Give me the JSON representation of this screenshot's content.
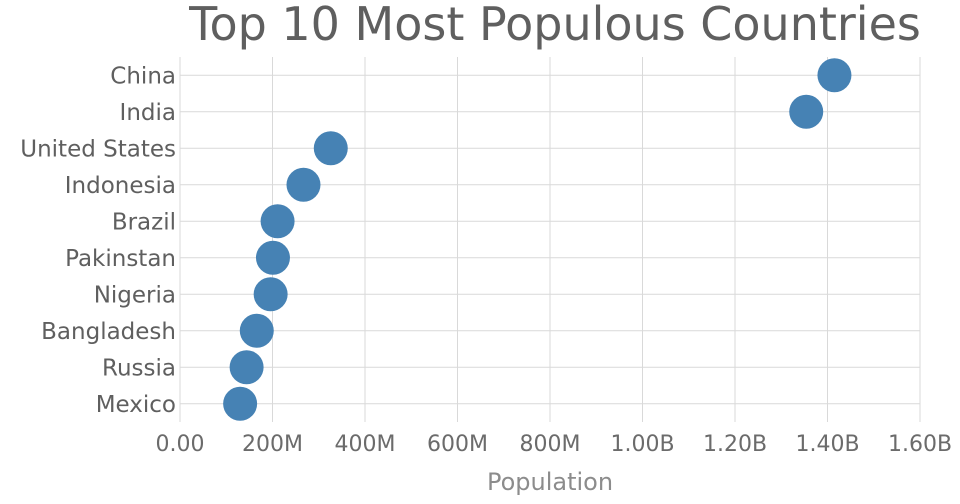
{
  "chart_data": {
    "type": "scatter",
    "title": "Top 10 Most Populous Countries",
    "xlabel": "Population",
    "ylabel": "",
    "xlim": [
      0,
      1600000000
    ],
    "x_ticks": [
      0,
      200000000,
      400000000,
      600000000,
      800000000,
      1000000000,
      1200000000,
      1400000000,
      1600000000
    ],
    "x_tick_labels": [
      "0.00",
      "200M",
      "400M",
      "600M",
      "800M",
      "1.00B",
      "1.20B",
      "1.40B",
      "1.60B"
    ],
    "categories": [
      "China",
      "India",
      "United States",
      "Indonesia",
      "Brazil",
      "Pakinstan",
      "Nigeria",
      "Bangladesh",
      "Russia",
      "Mexico"
    ],
    "values": [
      1415000000,
      1354000000,
      326000000,
      267000000,
      211000000,
      201000000,
      196000000,
      166000000,
      144000000,
      130000000
    ],
    "marker_color": "#4682b4",
    "grid": true
  }
}
